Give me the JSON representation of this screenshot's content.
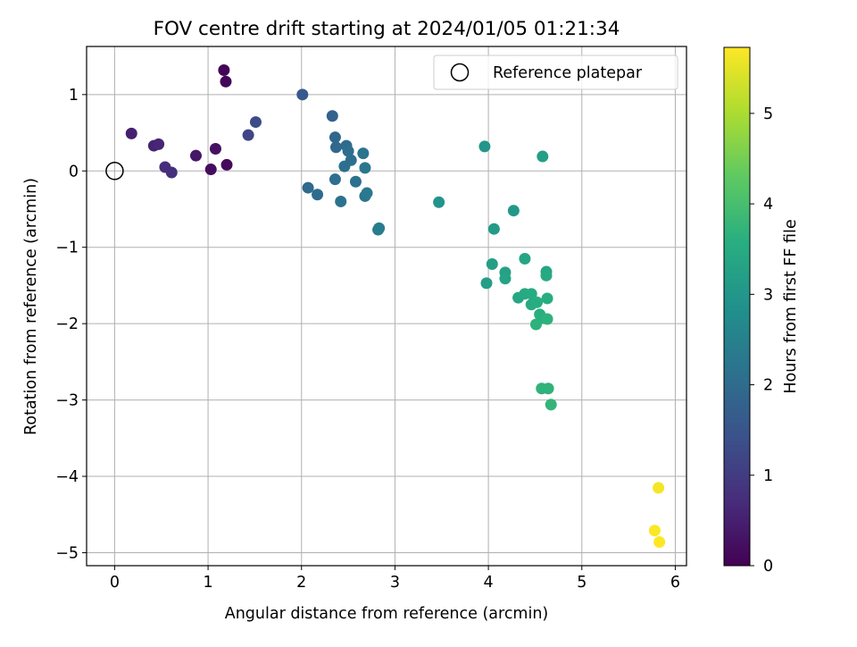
{
  "chart_data": {
    "type": "scatter",
    "title": "FOV centre drift starting at 2024/01/05 01:21:34",
    "xlabel": "Angular distance from reference (arcmin)",
    "ylabel": "Rotation from reference (arcmin)",
    "xlim": [
      -0.3,
      6.12
    ],
    "ylim": [
      -5.17,
      1.63
    ],
    "xticks": [
      0,
      1,
      2,
      3,
      4,
      5,
      6
    ],
    "xtick_labels": [
      "0",
      "1",
      "2",
      "3",
      "4",
      "5",
      "6"
    ],
    "yticks": [
      1,
      0,
      -1,
      -2,
      -3,
      -4,
      -5
    ],
    "ytick_labels": [
      "1",
      "0",
      "−1",
      "−2",
      "−3",
      "−4",
      "−5"
    ],
    "grid": true,
    "legend": {
      "placement": "top-right",
      "entries": [
        "Reference platepar"
      ]
    },
    "colorbar": {
      "label": "Hours from first FF file",
      "colormap": "viridis",
      "range": [
        0,
        5.73
      ],
      "ticks": [
        0,
        1,
        2,
        3,
        4,
        5
      ],
      "tick_labels": [
        "0",
        "1",
        "2",
        "3",
        "4",
        "5"
      ]
    },
    "reference_point": {
      "x": 0,
      "y": 0
    },
    "points": [
      {
        "x": 1.17,
        "y": 1.32,
        "h": 0.05
      },
      {
        "x": 1.19,
        "y": 1.17,
        "h": 0.08
      },
      {
        "x": 1.2,
        "y": 0.08,
        "h": 0.15
      },
      {
        "x": 1.03,
        "y": 0.02,
        "h": 0.2
      },
      {
        "x": 1.08,
        "y": 0.29,
        "h": 0.28
      },
      {
        "x": 0.87,
        "y": 0.2,
        "h": 0.35
      },
      {
        "x": 0.18,
        "y": 0.49,
        "h": 0.5
      },
      {
        "x": 0.42,
        "y": 0.33,
        "h": 0.55
      },
      {
        "x": 0.47,
        "y": 0.35,
        "h": 0.6
      },
      {
        "x": 0.54,
        "y": 0.05,
        "h": 0.72
      },
      {
        "x": 0.61,
        "y": -0.02,
        "h": 0.78
      },
      {
        "x": 1.43,
        "y": 0.47,
        "h": 1.2
      },
      {
        "x": 1.51,
        "y": 0.64,
        "h": 1.3
      },
      {
        "x": 2.01,
        "y": 1.0,
        "h": 1.6
      },
      {
        "x": 2.33,
        "y": 0.72,
        "h": 1.8
      },
      {
        "x": 2.36,
        "y": 0.44,
        "h": 1.9
      },
      {
        "x": 2.37,
        "y": 0.31,
        "h": 1.95
      },
      {
        "x": 2.48,
        "y": 0.33,
        "h": 2.0
      },
      {
        "x": 2.5,
        "y": 0.26,
        "h": 2.05
      },
      {
        "x": 2.53,
        "y": 0.14,
        "h": 2.1
      },
      {
        "x": 2.46,
        "y": 0.06,
        "h": 2.1
      },
      {
        "x": 2.66,
        "y": 0.23,
        "h": 2.2
      },
      {
        "x": 2.68,
        "y": 0.04,
        "h": 2.25
      },
      {
        "x": 2.07,
        "y": -0.22,
        "h": 1.95
      },
      {
        "x": 2.17,
        "y": -0.31,
        "h": 2.0
      },
      {
        "x": 2.36,
        "y": -0.11,
        "h": 2.05
      },
      {
        "x": 2.58,
        "y": -0.14,
        "h": 2.15
      },
      {
        "x": 2.42,
        "y": -0.4,
        "h": 2.15
      },
      {
        "x": 2.68,
        "y": -0.33,
        "h": 2.25
      },
      {
        "x": 2.7,
        "y": -0.29,
        "h": 2.3
      },
      {
        "x": 2.82,
        "y": -0.77,
        "h": 2.35
      },
      {
        "x": 2.83,
        "y": -0.75,
        "h": 2.4
      },
      {
        "x": 3.47,
        "y": -0.41,
        "h": 2.95
      },
      {
        "x": 3.96,
        "y": 0.32,
        "h": 3.0
      },
      {
        "x": 4.58,
        "y": 0.19,
        "h": 3.2
      },
      {
        "x": 4.27,
        "y": -0.52,
        "h": 3.05
      },
      {
        "x": 4.06,
        "y": -0.76,
        "h": 3.1
      },
      {
        "x": 4.04,
        "y": -1.22,
        "h": 3.2
      },
      {
        "x": 3.98,
        "y": -1.47,
        "h": 3.15
      },
      {
        "x": 4.18,
        "y": -1.33,
        "h": 3.25
      },
      {
        "x": 4.18,
        "y": -1.41,
        "h": 3.3
      },
      {
        "x": 4.39,
        "y": -1.15,
        "h": 3.35
      },
      {
        "x": 4.62,
        "y": -1.32,
        "h": 3.4
      },
      {
        "x": 4.62,
        "y": -1.37,
        "h": 3.45
      },
      {
        "x": 4.32,
        "y": -1.66,
        "h": 3.4
      },
      {
        "x": 4.39,
        "y": -1.61,
        "h": 3.45
      },
      {
        "x": 4.46,
        "y": -1.61,
        "h": 3.5
      },
      {
        "x": 4.46,
        "y": -1.75,
        "h": 3.5
      },
      {
        "x": 4.52,
        "y": -1.72,
        "h": 3.55
      },
      {
        "x": 4.63,
        "y": -1.67,
        "h": 3.55
      },
      {
        "x": 4.55,
        "y": -1.88,
        "h": 3.6
      },
      {
        "x": 4.58,
        "y": -1.93,
        "h": 3.6
      },
      {
        "x": 4.51,
        "y": -2.01,
        "h": 3.65
      },
      {
        "x": 4.63,
        "y": -1.94,
        "h": 3.65
      },
      {
        "x": 4.57,
        "y": -2.85,
        "h": 3.7
      },
      {
        "x": 4.64,
        "y": -2.85,
        "h": 3.7
      },
      {
        "x": 4.67,
        "y": -3.06,
        "h": 3.75
      },
      {
        "x": 5.82,
        "y": -4.15,
        "h": 5.65
      },
      {
        "x": 5.78,
        "y": -4.71,
        "h": 5.7
      },
      {
        "x": 5.83,
        "y": -4.86,
        "h": 5.73
      }
    ]
  }
}
